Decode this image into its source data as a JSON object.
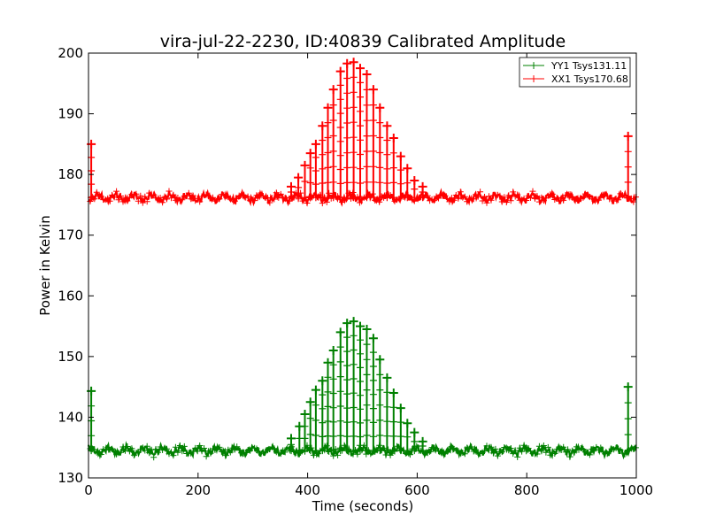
{
  "chart_data": {
    "type": "line",
    "title": "vira-jul-22-2230, ID:40839 Calibrated Amplitude",
    "xlabel": "Time (seconds)",
    "ylabel": "Power in Kelvin",
    "xlim": [
      0,
      1000
    ],
    "ylim": [
      130,
      200
    ],
    "x_ticks": [
      0,
      200,
      400,
      600,
      800,
      1000
    ],
    "y_ticks": [
      130,
      140,
      150,
      160,
      170,
      180,
      190,
      200
    ],
    "grid": false,
    "legend_position": "top-right",
    "marker": "plus",
    "series": [
      {
        "name": "YY1 Tsys131.11",
        "color": "#008000",
        "baseline": 134.5,
        "points": [
          [
            5,
            144.3
          ],
          [
            370,
            136.5
          ],
          [
            385,
            138.5
          ],
          [
            395,
            140.5
          ],
          [
            405,
            142.5
          ],
          [
            415,
            144.5
          ],
          [
            427,
            146
          ],
          [
            437,
            149
          ],
          [
            447,
            151
          ],
          [
            460,
            154
          ],
          [
            472,
            155.5
          ],
          [
            484,
            155.8
          ],
          [
            496,
            155
          ],
          [
            508,
            154.5
          ],
          [
            520,
            153
          ],
          [
            532,
            149.5
          ],
          [
            545,
            146.5
          ],
          [
            557,
            144
          ],
          [
            570,
            141.5
          ],
          [
            582,
            139
          ],
          [
            595,
            137.5
          ],
          [
            610,
            136
          ],
          [
            985,
            145
          ]
        ]
      },
      {
        "name": "XX1 Tsys170.68",
        "color": "#ff0000",
        "baseline": 176.2,
        "points": [
          [
            5,
            185
          ],
          [
            370,
            178
          ],
          [
            383,
            179.5
          ],
          [
            395,
            181.5
          ],
          [
            405,
            183.5
          ],
          [
            415,
            185
          ],
          [
            427,
            188
          ],
          [
            437,
            191
          ],
          [
            447,
            194
          ],
          [
            460,
            197
          ],
          [
            472,
            198.3
          ],
          [
            484,
            198.5
          ],
          [
            496,
            197.5
          ],
          [
            508,
            196.5
          ],
          [
            520,
            194
          ],
          [
            532,
            191
          ],
          [
            545,
            188
          ],
          [
            557,
            186
          ],
          [
            570,
            183
          ],
          [
            582,
            181
          ],
          [
            595,
            179
          ],
          [
            610,
            178
          ],
          [
            985,
            186.3
          ]
        ]
      }
    ]
  }
}
